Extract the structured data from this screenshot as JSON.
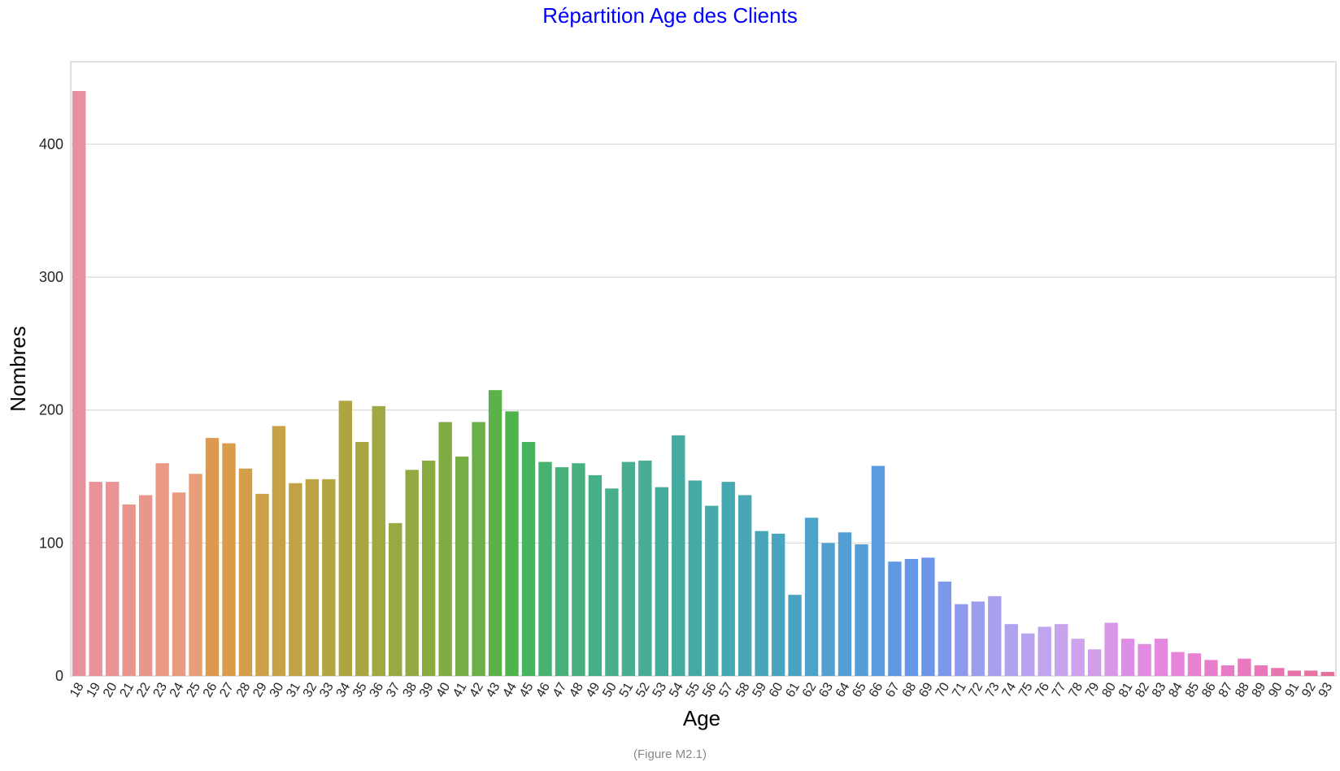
{
  "figure": {
    "caption": "(Figure M2.1)"
  },
  "chart_data": {
    "type": "bar",
    "title": "Répartition Age des Clients",
    "xlabel": "Age",
    "ylabel": "Nombres",
    "ylim": [
      0,
      462
    ],
    "yticks": [
      0,
      100,
      200,
      300,
      400
    ],
    "grid": "horizontal",
    "legend": "none",
    "categories": [
      "18",
      "19",
      "20",
      "21",
      "22",
      "23",
      "24",
      "25",
      "26",
      "27",
      "28",
      "29",
      "30",
      "31",
      "32",
      "33",
      "34",
      "35",
      "36",
      "37",
      "38",
      "39",
      "40",
      "41",
      "42",
      "43",
      "44",
      "45",
      "46",
      "47",
      "48",
      "49",
      "50",
      "51",
      "52",
      "53",
      "54",
      "55",
      "56",
      "57",
      "58",
      "59",
      "60",
      "61",
      "62",
      "63",
      "64",
      "65",
      "66",
      "67",
      "68",
      "69",
      "70",
      "71",
      "72",
      "73",
      "74",
      "75",
      "76",
      "77",
      "78",
      "79",
      "80",
      "81",
      "82",
      "83",
      "84",
      "85",
      "86",
      "87",
      "88",
      "89",
      "90",
      "91",
      "92",
      "93"
    ],
    "values": [
      440,
      146,
      146,
      129,
      136,
      160,
      138,
      152,
      179,
      175,
      156,
      137,
      188,
      145,
      148,
      148,
      207,
      176,
      203,
      115,
      155,
      162,
      191,
      165,
      191,
      215,
      199,
      176,
      161,
      157,
      160,
      151,
      141,
      161,
      162,
      142,
      181,
      147,
      128,
      146,
      136,
      109,
      107,
      61,
      119,
      100,
      108,
      99,
      158,
      86,
      88,
      89,
      71,
      54,
      56,
      60,
      39,
      32,
      37,
      39,
      28,
      20,
      40,
      28,
      24,
      28,
      18,
      17,
      12,
      8,
      13,
      8,
      6,
      4,
      4,
      3
    ],
    "colors": [
      "#e8919e",
      "#e9929a",
      "#e99394",
      "#e9958e",
      "#e9978a",
      "#e99984",
      "#e99b7f",
      "#e89e79",
      "#dd9a4c",
      "#d89c4b",
      "#d39e49",
      "#cd9f47",
      "#c7a146",
      "#c1a245",
      "#bba444",
      "#b4a543",
      "#aea542",
      "#a7a641",
      "#a0a841",
      "#98a941",
      "#90aa41",
      "#88ab42",
      "#7fad43",
      "#75ae45",
      "#6aaf48",
      "#5cb14b",
      "#4fb34e",
      "#47b460",
      "#48b26f",
      "#48b177",
      "#48b07f",
      "#47b086",
      "#47af8c",
      "#46ae92",
      "#46ad97",
      "#45ac9c",
      "#45aba1",
      "#45aaa6",
      "#46a9ab",
      "#46a8b0",
      "#47a7b5",
      "#48a6ba",
      "#49a5bf",
      "#4ba3c4",
      "#4da2c9",
      "#50a1ce",
      "#539fd3",
      "#569dd8",
      "#5a9bdd",
      "#5f99e1",
      "#6597e5",
      "#6c95e8",
      "#7b98ea",
      "#8d9aeb",
      "#9b9ded",
      "#a89fee",
      "#b1a2ef",
      "#b9a3ef",
      "#c0a4ef",
      "#c6a4ee",
      "#cca3ec",
      "#d19deb",
      "#d896e9",
      "#dd8fe6",
      "#e18be3",
      "#e487de",
      "#e584d8",
      "#e681d2",
      "#e77ecc",
      "#e77bc5",
      "#e779be",
      "#e777b8",
      "#e775b1",
      "#e773aa",
      "#e771a3",
      "#e76f9c"
    ]
  }
}
